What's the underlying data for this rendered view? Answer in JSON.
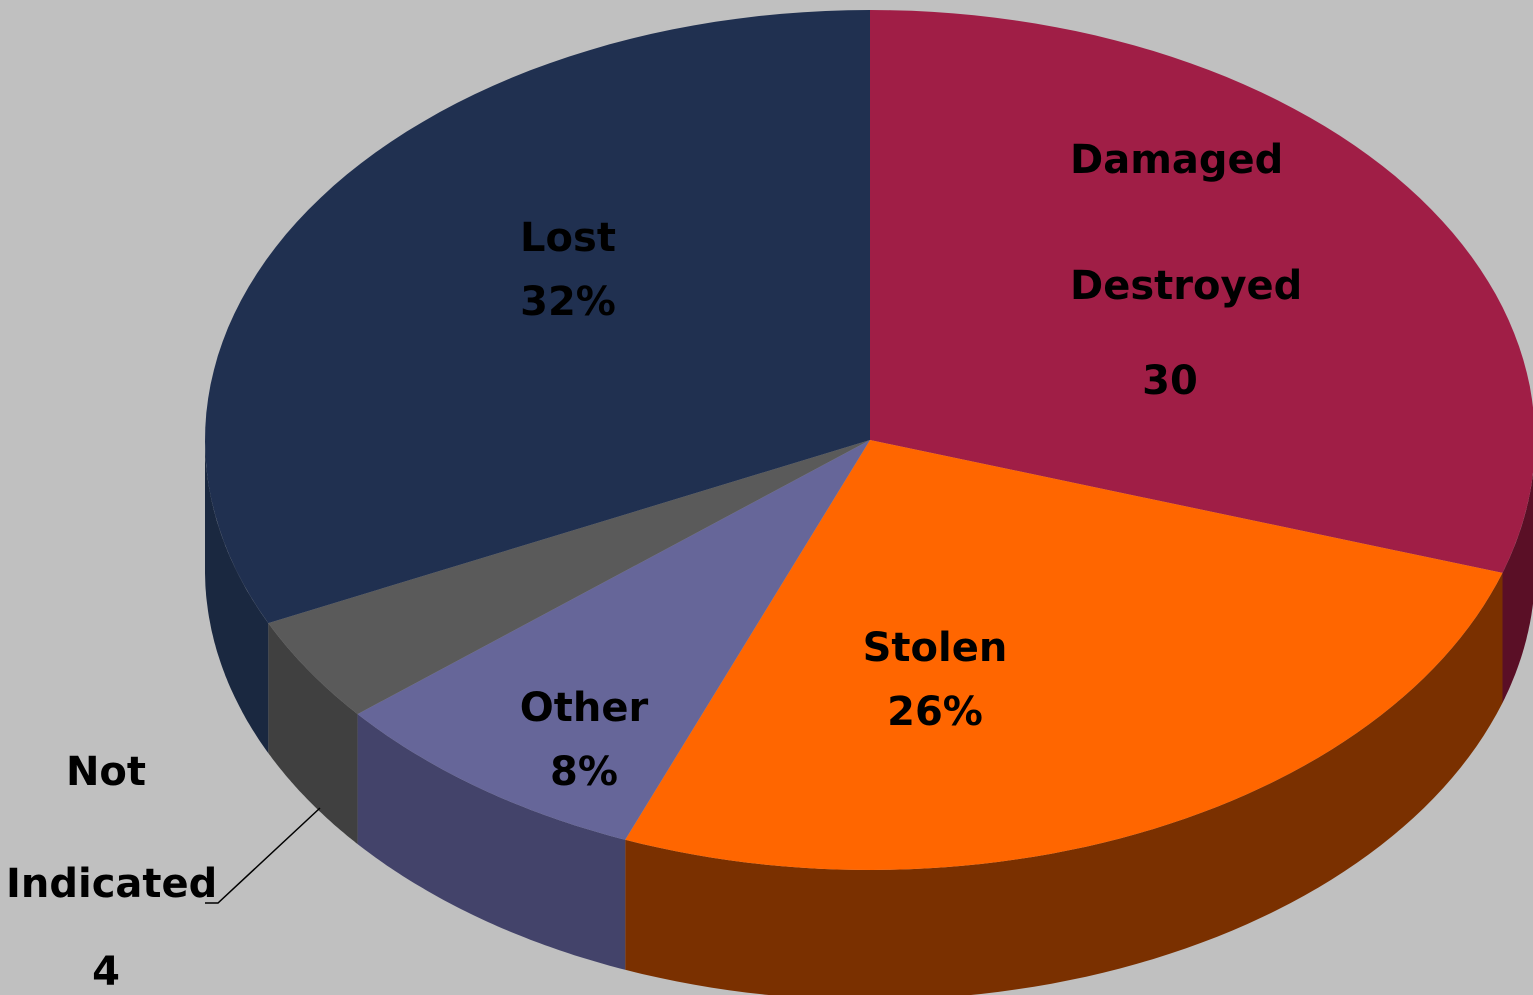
{
  "chart_data": {
    "type": "pie",
    "categories": [
      "Damaged Destroyed",
      "Stolen",
      "Other",
      "Not Indicated",
      "Lost"
    ],
    "values": [
      30,
      26,
      8,
      4,
      32
    ],
    "value_labels": [
      "30",
      "26%",
      "8%",
      "4",
      "32%"
    ],
    "colors": [
      "#a01e46",
      "#ff6600",
      "#666699",
      "#5a5a5a",
      "#203050"
    ],
    "side_colors": [
      "#5a0f26",
      "#7a3000",
      "#43436a",
      "#404040",
      "#1a2840"
    ]
  }
}
